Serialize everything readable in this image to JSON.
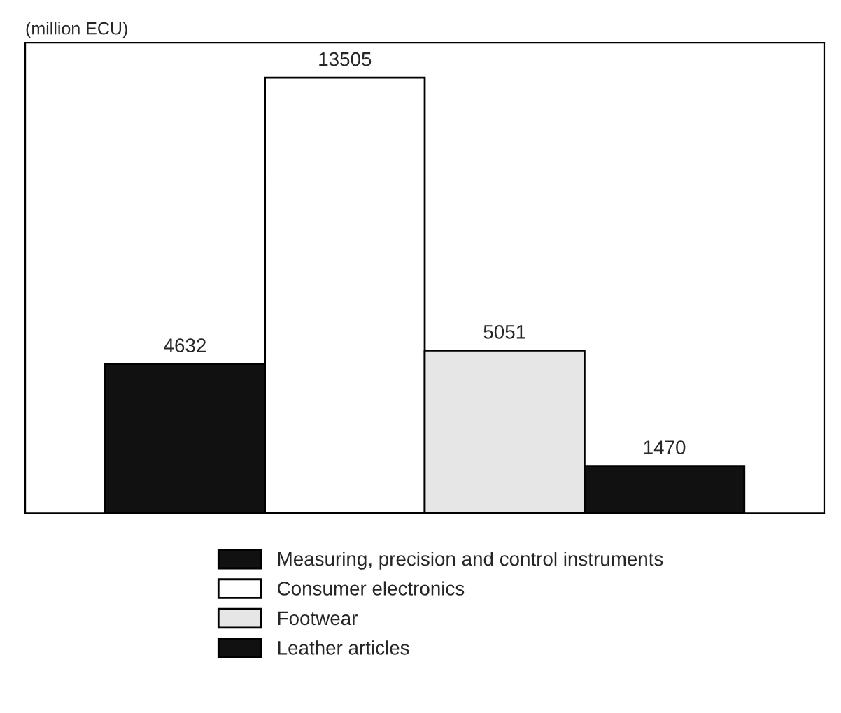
{
  "chart_data": {
    "type": "bar",
    "ylabel": "(million ECU)",
    "categories": [
      null
    ],
    "series": [
      {
        "name": "Measuring, precision and control instruments",
        "color": "#111111",
        "values": [
          4632
        ]
      },
      {
        "name": "Consumer electronics",
        "color": "#ffffff",
        "values": [
          13505
        ]
      },
      {
        "name": "Footwear",
        "color": "#e6e6e6",
        "values": [
          5051
        ]
      },
      {
        "name": "Leather articles",
        "color": "#111111",
        "values": [
          1470
        ]
      }
    ],
    "data_labels": true,
    "legend": "bottom",
    "grid": false
  }
}
